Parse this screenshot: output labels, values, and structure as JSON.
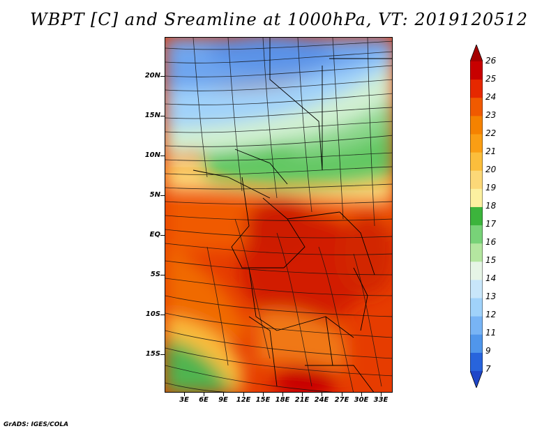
{
  "title": "WBPT [C] and Sreamline at 1000hPa, VT: 2019120512",
  "latitude_labels": [
    "20N",
    "15N",
    "10N",
    "5N",
    "EQ",
    "5S",
    "10S",
    "15S"
  ],
  "longitude_labels": [
    "3E",
    "6E",
    "9E",
    "12E",
    "15E",
    "18E",
    "21E",
    "24E",
    "27E",
    "30E",
    "33E"
  ],
  "colorbar": {
    "labels": [
      "26",
      "25",
      "24",
      "23",
      "22",
      "21",
      "20",
      "19",
      "18",
      "17",
      "16",
      "15",
      "14",
      "13",
      "12",
      "11",
      "9",
      "7"
    ],
    "colors": [
      "#a50000",
      "#c80000",
      "#e62800",
      "#f05a00",
      "#f58200",
      "#fa9e14",
      "#fbbe3c",
      "#fcd878",
      "#fcf0a0",
      "#3cb43c",
      "#78d278",
      "#b4e6a0",
      "#e6f5e6",
      "#c8e6fa",
      "#a0d2fa",
      "#78b4f5",
      "#5096eb",
      "#2864dc",
      "#1e46c8"
    ]
  },
  "footer": "GrADS: IGES/COLA"
}
